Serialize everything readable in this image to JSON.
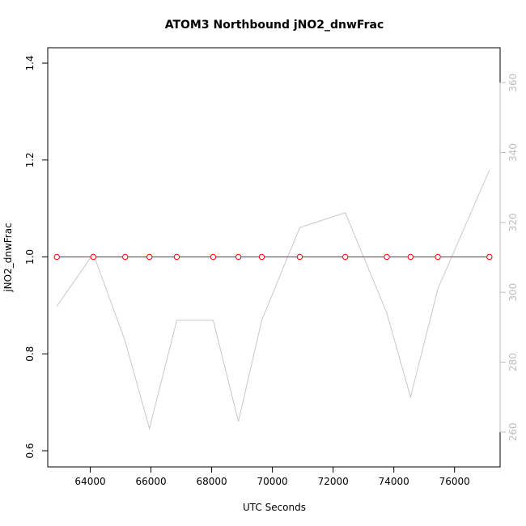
{
  "chart_data": {
    "type": "line",
    "title": "ATOM3 Northbound jNO2_dnwFrac",
    "xlabel": "UTC Seconds",
    "ylabel": "jNO2_dnwFrac",
    "xlim": [
      62600,
      77500
    ],
    "ylim": [
      0.6,
      1.4
    ],
    "y2lim": [
      250,
      370
    ],
    "x_ticks": [
      64000,
      66000,
      68000,
      70000,
      72000,
      74000,
      76000
    ],
    "y_ticks": [
      0.6,
      0.8,
      1.0,
      1.2,
      1.4
    ],
    "y2_ticks": [
      260,
      280,
      300,
      320,
      340,
      360
    ],
    "x_tick_labels": [
      "64000",
      "66000",
      "68000",
      "70000",
      "72000",
      "74000",
      "76000"
    ],
    "y_tick_labels": [
      "0.6",
      "0.8",
      "1.0",
      "1.2",
      "1.4"
    ],
    "y2_tick_labels": [
      "260",
      "280",
      "300",
      "320",
      "340",
      "360"
    ],
    "grid": false,
    "series": [
      {
        "axis": "left",
        "color": "#ff0000",
        "marker": "open-circle",
        "x": [
          62900,
          64100,
          65150,
          65950,
          66850,
          68050,
          68880,
          69650,
          70900,
          72400,
          73770,
          74550,
          75450,
          77150
        ],
        "values": [
          1.0,
          1.0,
          1.0,
          1.0,
          1.0,
          1.0,
          1.0,
          1.0,
          1.0,
          1.0,
          1.0,
          1.0,
          1.0,
          1.0
        ]
      },
      {
        "axis": "right",
        "color": "#c8c8c8",
        "marker": "none",
        "x": [
          62900,
          64100,
          65150,
          65950,
          66850,
          68050,
          68880,
          69650,
          70900,
          72400,
          73770,
          74550,
          75450,
          77150
        ],
        "values": [
          296,
          311,
          286,
          261,
          292,
          292,
          263,
          292,
          318.5,
          322.8,
          294,
          270,
          301,
          335
        ]
      }
    ]
  }
}
